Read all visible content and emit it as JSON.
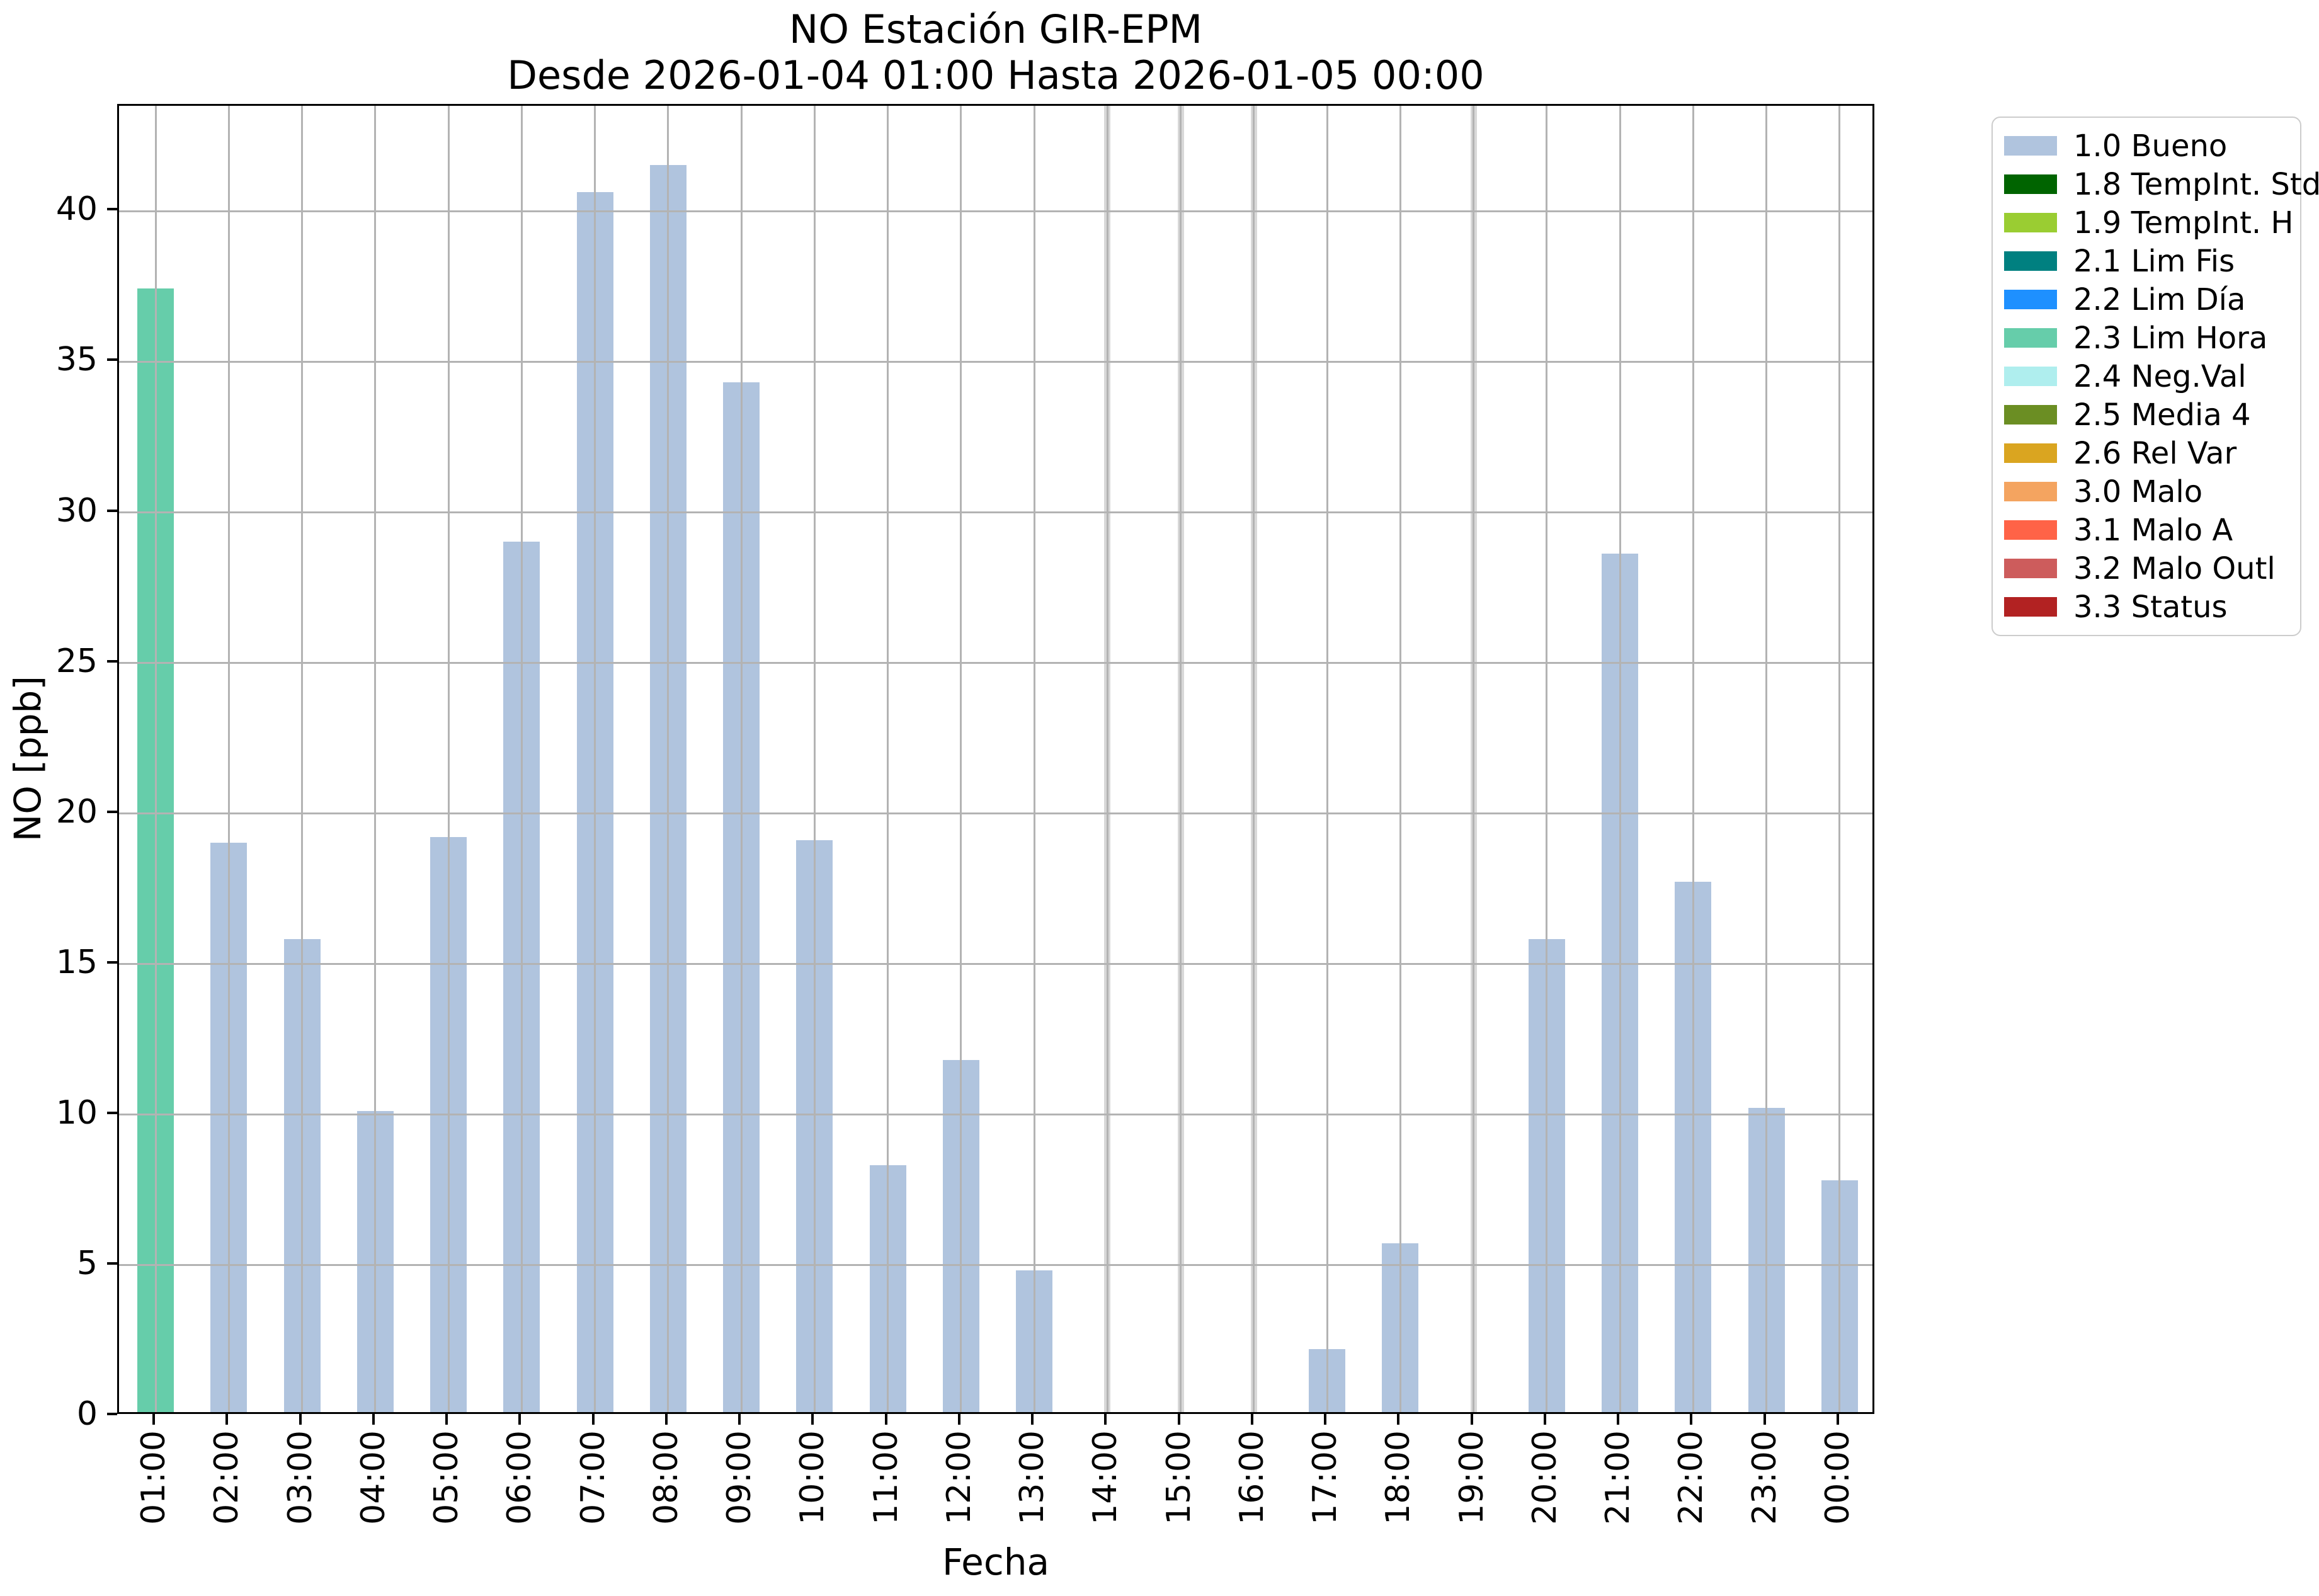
{
  "title": {
    "line1": "NO Estación GIR-EPM",
    "line2": "Desde 2026-01-04 01:00 Hasta 2026-01-05 00:00"
  },
  "axes": {
    "xlabel": "Fecha",
    "ylabel": "NO [ppb]"
  },
  "legend": {
    "entries": [
      {
        "label": "1.0 Bueno",
        "color": "#b0c4de"
      },
      {
        "label": "1.8 TempInt. Std",
        "color": "#006400"
      },
      {
        "label": "1.9 TempInt. H",
        "color": "#9acd32"
      },
      {
        "label": "2.1 Lim Fis",
        "color": "#008080"
      },
      {
        "label": "2.2 Lim Día",
        "color": "#1e90ff"
      },
      {
        "label": "2.3 Lim Hora",
        "color": "#66cdaa"
      },
      {
        "label": "2.4 Neg.Val",
        "color": "#afeeee"
      },
      {
        "label": "2.5 Media 4",
        "color": "#6b8e23"
      },
      {
        "label": "2.6 Rel Var",
        "color": "#daa520"
      },
      {
        "label": "3.0 Malo",
        "color": "#f4a460"
      },
      {
        "label": "3.1 Malo A",
        "color": "#ff6347"
      },
      {
        "label": "3.2 Malo Outl",
        "color": "#cd5c5c"
      },
      {
        "label": "3.3 Status",
        "color": "#b22222"
      }
    ]
  },
  "colors": {
    "background": "#ffffff",
    "grid": "#b3b3b3",
    "spine": "#000000",
    "missing_band": "#d8d8d8",
    "legend_border": "#cccccc",
    "text": "#000000"
  },
  "chart_data": {
    "type": "bar",
    "title": "NO Estación GIR-EPM",
    "subtitle": "Desde 2026-01-04 01:00 Hasta 2026-01-05 00:00",
    "xlabel": "Fecha",
    "ylabel": "NO [ppb]",
    "ylim": [
      0,
      43.5
    ],
    "yticks": [
      0,
      5,
      10,
      15,
      20,
      25,
      30,
      35,
      40
    ],
    "grid": true,
    "x_tick_rotation": 90,
    "legend_position": "outside upper right",
    "categories": [
      "01:00",
      "02:00",
      "03:00",
      "04:00",
      "05:00",
      "06:00",
      "07:00",
      "08:00",
      "09:00",
      "10:00",
      "11:00",
      "12:00",
      "13:00",
      "14:00",
      "15:00",
      "16:00",
      "17:00",
      "18:00",
      "19:00",
      "20:00",
      "21:00",
      "22:00",
      "23:00",
      "00:00"
    ],
    "series": [
      {
        "name": "NO [ppb]",
        "values": [
          37.3,
          18.9,
          15.7,
          10.0,
          19.1,
          28.9,
          40.5,
          41.4,
          34.2,
          19.0,
          8.2,
          11.7,
          4.7,
          null,
          null,
          null,
          2.1,
          5.6,
          null,
          15.7,
          28.5,
          17.6,
          10.1,
          7.7
        ]
      }
    ],
    "bars": [
      {
        "hour": "01:00",
        "value": 37.3,
        "flag": "2.3 Lim Hora"
      },
      {
        "hour": "02:00",
        "value": 18.9,
        "flag": "1.0 Bueno"
      },
      {
        "hour": "03:00",
        "value": 15.7,
        "flag": "1.0 Bueno"
      },
      {
        "hour": "04:00",
        "value": 10.0,
        "flag": "1.0 Bueno"
      },
      {
        "hour": "05:00",
        "value": 19.1,
        "flag": "1.0 Bueno"
      },
      {
        "hour": "06:00",
        "value": 28.9,
        "flag": "1.0 Bueno"
      },
      {
        "hour": "07:00",
        "value": 40.5,
        "flag": "1.0 Bueno"
      },
      {
        "hour": "08:00",
        "value": 41.4,
        "flag": "1.0 Bueno"
      },
      {
        "hour": "09:00",
        "value": 34.2,
        "flag": "1.0 Bueno"
      },
      {
        "hour": "10:00",
        "value": 19.0,
        "flag": "1.0 Bueno"
      },
      {
        "hour": "11:00",
        "value": 8.2,
        "flag": "1.0 Bueno"
      },
      {
        "hour": "12:00",
        "value": 11.7,
        "flag": "1.0 Bueno"
      },
      {
        "hour": "13:00",
        "value": 4.7,
        "flag": "1.0 Bueno"
      },
      {
        "hour": "14:00",
        "value": null,
        "flag": null,
        "missing": true
      },
      {
        "hour": "15:00",
        "value": null,
        "flag": null,
        "missing": true
      },
      {
        "hour": "16:00",
        "value": null,
        "flag": null,
        "missing": true
      },
      {
        "hour": "17:00",
        "value": 2.1,
        "flag": "1.0 Bueno"
      },
      {
        "hour": "18:00",
        "value": 5.6,
        "flag": "1.0 Bueno"
      },
      {
        "hour": "19:00",
        "value": null,
        "flag": null,
        "missing": true
      },
      {
        "hour": "20:00",
        "value": 15.7,
        "flag": "1.0 Bueno"
      },
      {
        "hour": "21:00",
        "value": 28.5,
        "flag": "1.0 Bueno"
      },
      {
        "hour": "22:00",
        "value": 17.6,
        "flag": "1.0 Bueno"
      },
      {
        "hour": "23:00",
        "value": 10.1,
        "flag": "1.0 Bueno"
      },
      {
        "hour": "00:00",
        "value": 7.7,
        "flag": "1.0 Bueno"
      }
    ],
    "missing_hours": [
      "14:00",
      "15:00",
      "16:00",
      "19:00"
    ]
  }
}
